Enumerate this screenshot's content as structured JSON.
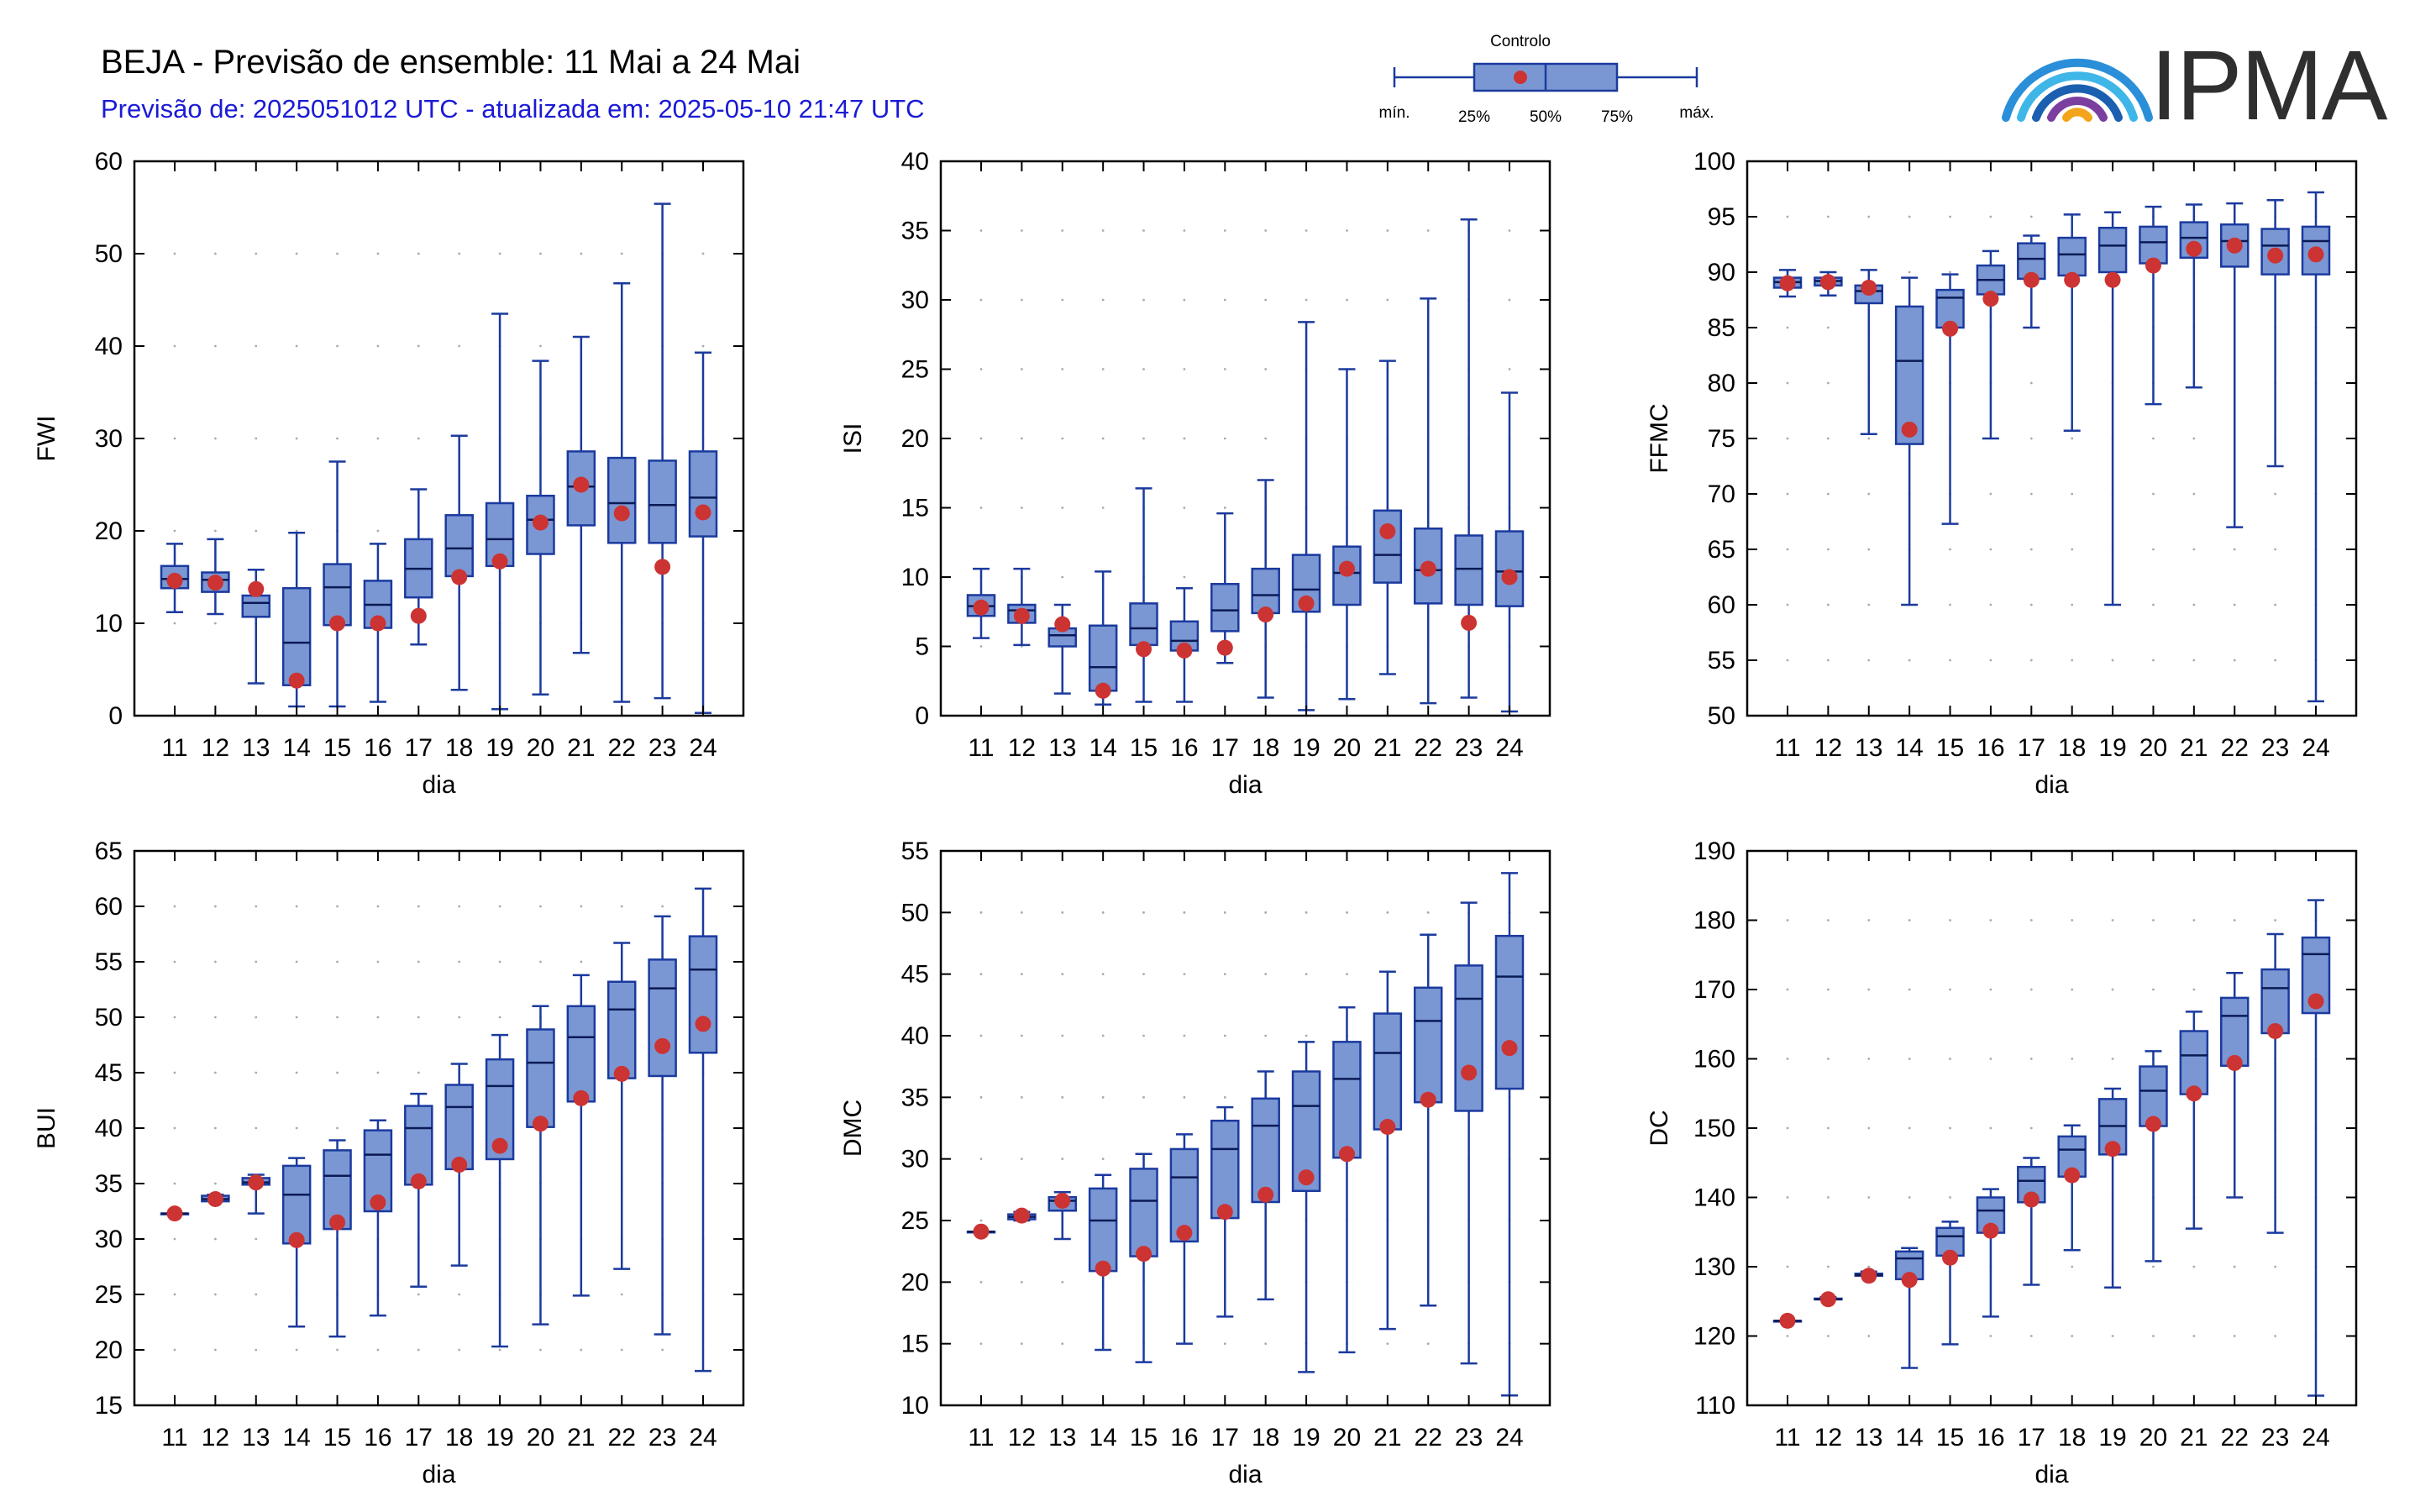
{
  "header": {
    "title": "BEJA - Previsão de ensemble: 11 Mai a 24 Mai",
    "subtitle": "Previsão de: 2025051012 UTC - atualizada em: 2025-05-10 21:47 UTC"
  },
  "logo": {
    "text": "IPMA",
    "icon": "ipma-arcs-logo-icon"
  },
  "legend": {
    "title": "Controlo",
    "labels": {
      "min": "mín.",
      "q25": "25%",
      "q50": "50%",
      "q75": "75%",
      "max": "máx."
    }
  },
  "colors": {
    "box_fill": "#7a97d4",
    "box_stroke": "#1b3a9e",
    "control": "#cc3333",
    "grid": "#aaaaaa"
  },
  "chart_data": [
    {
      "type": "boxplot",
      "ylabel": "FWI",
      "xlabel": "dia",
      "ylim": [
        0,
        60
      ],
      "yticks": [
        0,
        10,
        20,
        30,
        40,
        50,
        60
      ],
      "categories": [
        "11",
        "12",
        "13",
        "14",
        "15",
        "16",
        "17",
        "18",
        "19",
        "20",
        "21",
        "22",
        "23",
        "24"
      ],
      "min": [
        11.2,
        11.0,
        3.5,
        1.0,
        1.0,
        1.5,
        7.7,
        2.8,
        0.7,
        2.3,
        6.8,
        1.5,
        1.9,
        0.3
      ],
      "q1": [
        13.8,
        13.4,
        10.7,
        3.3,
        9.8,
        9.5,
        12.8,
        15.1,
        16.2,
        17.5,
        20.6,
        18.7,
        18.7,
        19.4
      ],
      "median": [
        14.8,
        14.7,
        12.2,
        7.9,
        13.9,
        12.0,
        15.9,
        18.1,
        19.1,
        21.2,
        24.8,
        23.0,
        22.8,
        23.6
      ],
      "q3": [
        16.2,
        15.5,
        13.0,
        13.8,
        16.4,
        14.6,
        19.1,
        21.7,
        23.0,
        23.8,
        28.6,
        27.9,
        27.6,
        28.6
      ],
      "max": [
        18.6,
        19.1,
        15.8,
        19.8,
        27.5,
        18.6,
        24.5,
        30.3,
        43.5,
        38.4,
        41.0,
        46.8,
        55.4,
        39.3
      ],
      "control": [
        14.6,
        14.4,
        13.7,
        3.8,
        10.0,
        10.0,
        10.8,
        15.0,
        16.7,
        20.9,
        25.0,
        21.9,
        16.1,
        22.0
      ]
    },
    {
      "type": "boxplot",
      "ylabel": "ISI",
      "xlabel": "dia",
      "ylim": [
        0,
        40
      ],
      "yticks": [
        0,
        5,
        10,
        15,
        20,
        25,
        30,
        35,
        40
      ],
      "categories": [
        "11",
        "12",
        "13",
        "14",
        "15",
        "16",
        "17",
        "18",
        "19",
        "20",
        "21",
        "22",
        "23",
        "24"
      ],
      "min": [
        5.6,
        5.1,
        1.6,
        0.8,
        1.0,
        1.0,
        3.8,
        1.3,
        0.4,
        1.2,
        3.0,
        0.9,
        1.3,
        0.3
      ],
      "q1": [
        7.2,
        6.7,
        5.0,
        1.8,
        5.1,
        4.7,
        6.1,
        7.4,
        7.5,
        8.0,
        9.6,
        8.1,
        8.0,
        7.9
      ],
      "median": [
        7.9,
        7.6,
        5.8,
        3.5,
        6.3,
        5.4,
        7.6,
        8.7,
        9.1,
        10.3,
        11.6,
        10.5,
        10.6,
        10.4
      ],
      "q3": [
        8.7,
        8.0,
        6.3,
        6.5,
        8.1,
        6.8,
        9.5,
        10.6,
        11.6,
        12.2,
        14.8,
        13.5,
        13.0,
        13.3
      ],
      "max": [
        10.6,
        10.6,
        8.0,
        10.4,
        16.4,
        9.2,
        14.6,
        17.0,
        28.4,
        25.0,
        25.6,
        30.1,
        35.8,
        23.3
      ],
      "control": [
        7.8,
        7.2,
        6.6,
        1.8,
        4.8,
        4.7,
        4.9,
        7.3,
        8.1,
        10.6,
        13.3,
        10.6,
        6.7,
        10.0
      ]
    },
    {
      "type": "boxplot",
      "ylabel": "FFMC",
      "xlabel": "dia",
      "ylim": [
        50,
        100
      ],
      "yticks": [
        50,
        55,
        60,
        65,
        70,
        75,
        80,
        85,
        90,
        95,
        100
      ],
      "categories": [
        "11",
        "12",
        "13",
        "14",
        "15",
        "16",
        "17",
        "18",
        "19",
        "20",
        "21",
        "22",
        "23",
        "24"
      ],
      "min": [
        87.8,
        87.9,
        75.4,
        60.0,
        67.3,
        75.0,
        85.0,
        75.7,
        60.0,
        78.1,
        79.6,
        67.0,
        72.5,
        51.3
      ],
      "q1": [
        88.6,
        88.8,
        87.2,
        74.5,
        85.0,
        88.0,
        89.4,
        89.7,
        90.0,
        90.8,
        91.3,
        90.5,
        89.8,
        89.8
      ],
      "median": [
        89.1,
        89.2,
        88.3,
        82.0,
        87.7,
        89.3,
        91.2,
        91.6,
        92.4,
        92.7,
        93.1,
        92.8,
        92.4,
        92.8
      ],
      "q3": [
        89.5,
        89.5,
        88.8,
        86.9,
        88.4,
        90.6,
        92.6,
        93.1,
        94.0,
        94.1,
        94.5,
        94.3,
        93.9,
        94.1
      ],
      "max": [
        90.2,
        90.0,
        90.2,
        89.5,
        89.8,
        91.9,
        93.3,
        95.2,
        95.4,
        95.9,
        96.1,
        96.2,
        96.5,
        97.2
      ],
      "control": [
        89.0,
        89.1,
        88.6,
        75.8,
        84.9,
        87.6,
        89.3,
        89.3,
        89.3,
        90.6,
        92.1,
        92.4,
        91.5,
        91.6
      ]
    },
    {
      "type": "boxplot",
      "ylabel": "BUI",
      "xlabel": "dia",
      "ylim": [
        15,
        65
      ],
      "yticks": [
        15,
        20,
        25,
        30,
        35,
        40,
        45,
        50,
        55,
        60,
        65
      ],
      "categories": [
        "11",
        "12",
        "13",
        "14",
        "15",
        "16",
        "17",
        "18",
        "19",
        "20",
        "21",
        "22",
        "23",
        "24"
      ],
      "min": [
        32.3,
        33.6,
        32.3,
        22.1,
        21.2,
        23.1,
        25.7,
        27.6,
        20.3,
        22.3,
        24.9,
        27.3,
        21.4,
        18.1
      ],
      "q1": [
        32.3,
        33.4,
        34.9,
        29.6,
        30.9,
        32.5,
        34.9,
        36.3,
        37.2,
        40.1,
        42.4,
        44.5,
        44.7,
        46.8
      ],
      "median": [
        32.3,
        33.6,
        35.1,
        34.0,
        35.7,
        37.6,
        40.0,
        41.9,
        43.8,
        45.9,
        48.2,
        50.7,
        52.6,
        54.3
      ],
      "q3": [
        32.3,
        33.9,
        35.5,
        36.6,
        38.0,
        39.8,
        42.0,
        43.9,
        46.2,
        48.9,
        51.0,
        53.2,
        55.2,
        57.3
      ],
      "max": [
        32.3,
        34.0,
        35.8,
        37.3,
        38.9,
        40.7,
        43.1,
        45.8,
        48.4,
        51.0,
        53.8,
        56.7,
        59.1,
        61.6
      ],
      "control": [
        32.3,
        33.6,
        35.1,
        29.9,
        31.5,
        33.3,
        35.2,
        36.7,
        38.4,
        40.4,
        42.7,
        44.9,
        47.4,
        49.4
      ]
    },
    {
      "type": "boxplot",
      "ylabel": "DMC",
      "xlabel": "dia",
      "ylim": [
        10,
        55
      ],
      "yticks": [
        10,
        15,
        20,
        25,
        30,
        35,
        40,
        45,
        50,
        55
      ],
      "categories": [
        "11",
        "12",
        "13",
        "14",
        "15",
        "16",
        "17",
        "18",
        "19",
        "20",
        "21",
        "22",
        "23",
        "24"
      ],
      "min": [
        24.1,
        25.0,
        23.5,
        14.5,
        13.5,
        15.0,
        17.2,
        18.6,
        12.7,
        14.3,
        16.2,
        18.1,
        13.4,
        10.8
      ],
      "q1": [
        24.1,
        25.1,
        25.8,
        20.9,
        22.1,
        23.3,
        25.2,
        26.5,
        27.4,
        30.1,
        32.4,
        34.6,
        33.9,
        35.7
      ],
      "median": [
        24.1,
        25.3,
        26.6,
        25.0,
        26.6,
        28.5,
        30.8,
        32.7,
        34.3,
        36.5,
        38.6,
        41.2,
        43.0,
        44.8
      ],
      "q3": [
        24.1,
        25.5,
        26.9,
        27.6,
        29.2,
        30.8,
        33.1,
        34.9,
        37.1,
        39.5,
        41.8,
        43.9,
        45.7,
        48.1
      ],
      "max": [
        24.1,
        25.7,
        27.3,
        28.7,
        30.4,
        32.0,
        34.2,
        37.1,
        39.5,
        42.3,
        45.2,
        48.2,
        50.8,
        53.2
      ],
      "control": [
        24.1,
        25.4,
        26.6,
        21.1,
        22.3,
        24.0,
        25.7,
        27.1,
        28.5,
        30.4,
        32.6,
        34.8,
        37.0,
        39.0
      ]
    },
    {
      "type": "boxplot",
      "ylabel": "DC",
      "xlabel": "dia",
      "ylim": [
        110,
        190
      ],
      "yticks": [
        110,
        120,
        130,
        140,
        150,
        160,
        170,
        180,
        190
      ],
      "categories": [
        "11",
        "12",
        "13",
        "14",
        "15",
        "16",
        "17",
        "18",
        "19",
        "20",
        "21",
        "22",
        "23",
        "24"
      ],
      "min": [
        122.2,
        125.3,
        128.7,
        115.4,
        118.8,
        122.8,
        127.4,
        132.4,
        127.0,
        130.8,
        135.5,
        140.0,
        134.9,
        111.4
      ],
      "q1": [
        122.2,
        125.3,
        128.7,
        128.2,
        131.6,
        134.9,
        139.3,
        143.0,
        146.2,
        150.3,
        154.9,
        159.0,
        163.7,
        166.6
      ],
      "median": [
        122.2,
        125.3,
        128.8,
        131.2,
        134.4,
        138.1,
        142.4,
        146.9,
        150.3,
        155.4,
        160.5,
        166.2,
        170.2,
        175.1
      ],
      "q3": [
        122.2,
        125.4,
        129.0,
        132.2,
        135.6,
        140.0,
        144.4,
        148.8,
        154.2,
        158.9,
        164.0,
        168.8,
        172.9,
        177.5
      ],
      "max": [
        122.2,
        125.6,
        129.3,
        132.7,
        136.5,
        141.2,
        145.7,
        150.4,
        155.7,
        161.1,
        166.8,
        172.4,
        178.0,
        182.9
      ],
      "control": [
        122.2,
        125.3,
        128.7,
        128.1,
        131.3,
        135.2,
        139.7,
        143.2,
        147.0,
        150.6,
        155.0,
        159.4,
        164.0,
        168.3
      ]
    }
  ]
}
